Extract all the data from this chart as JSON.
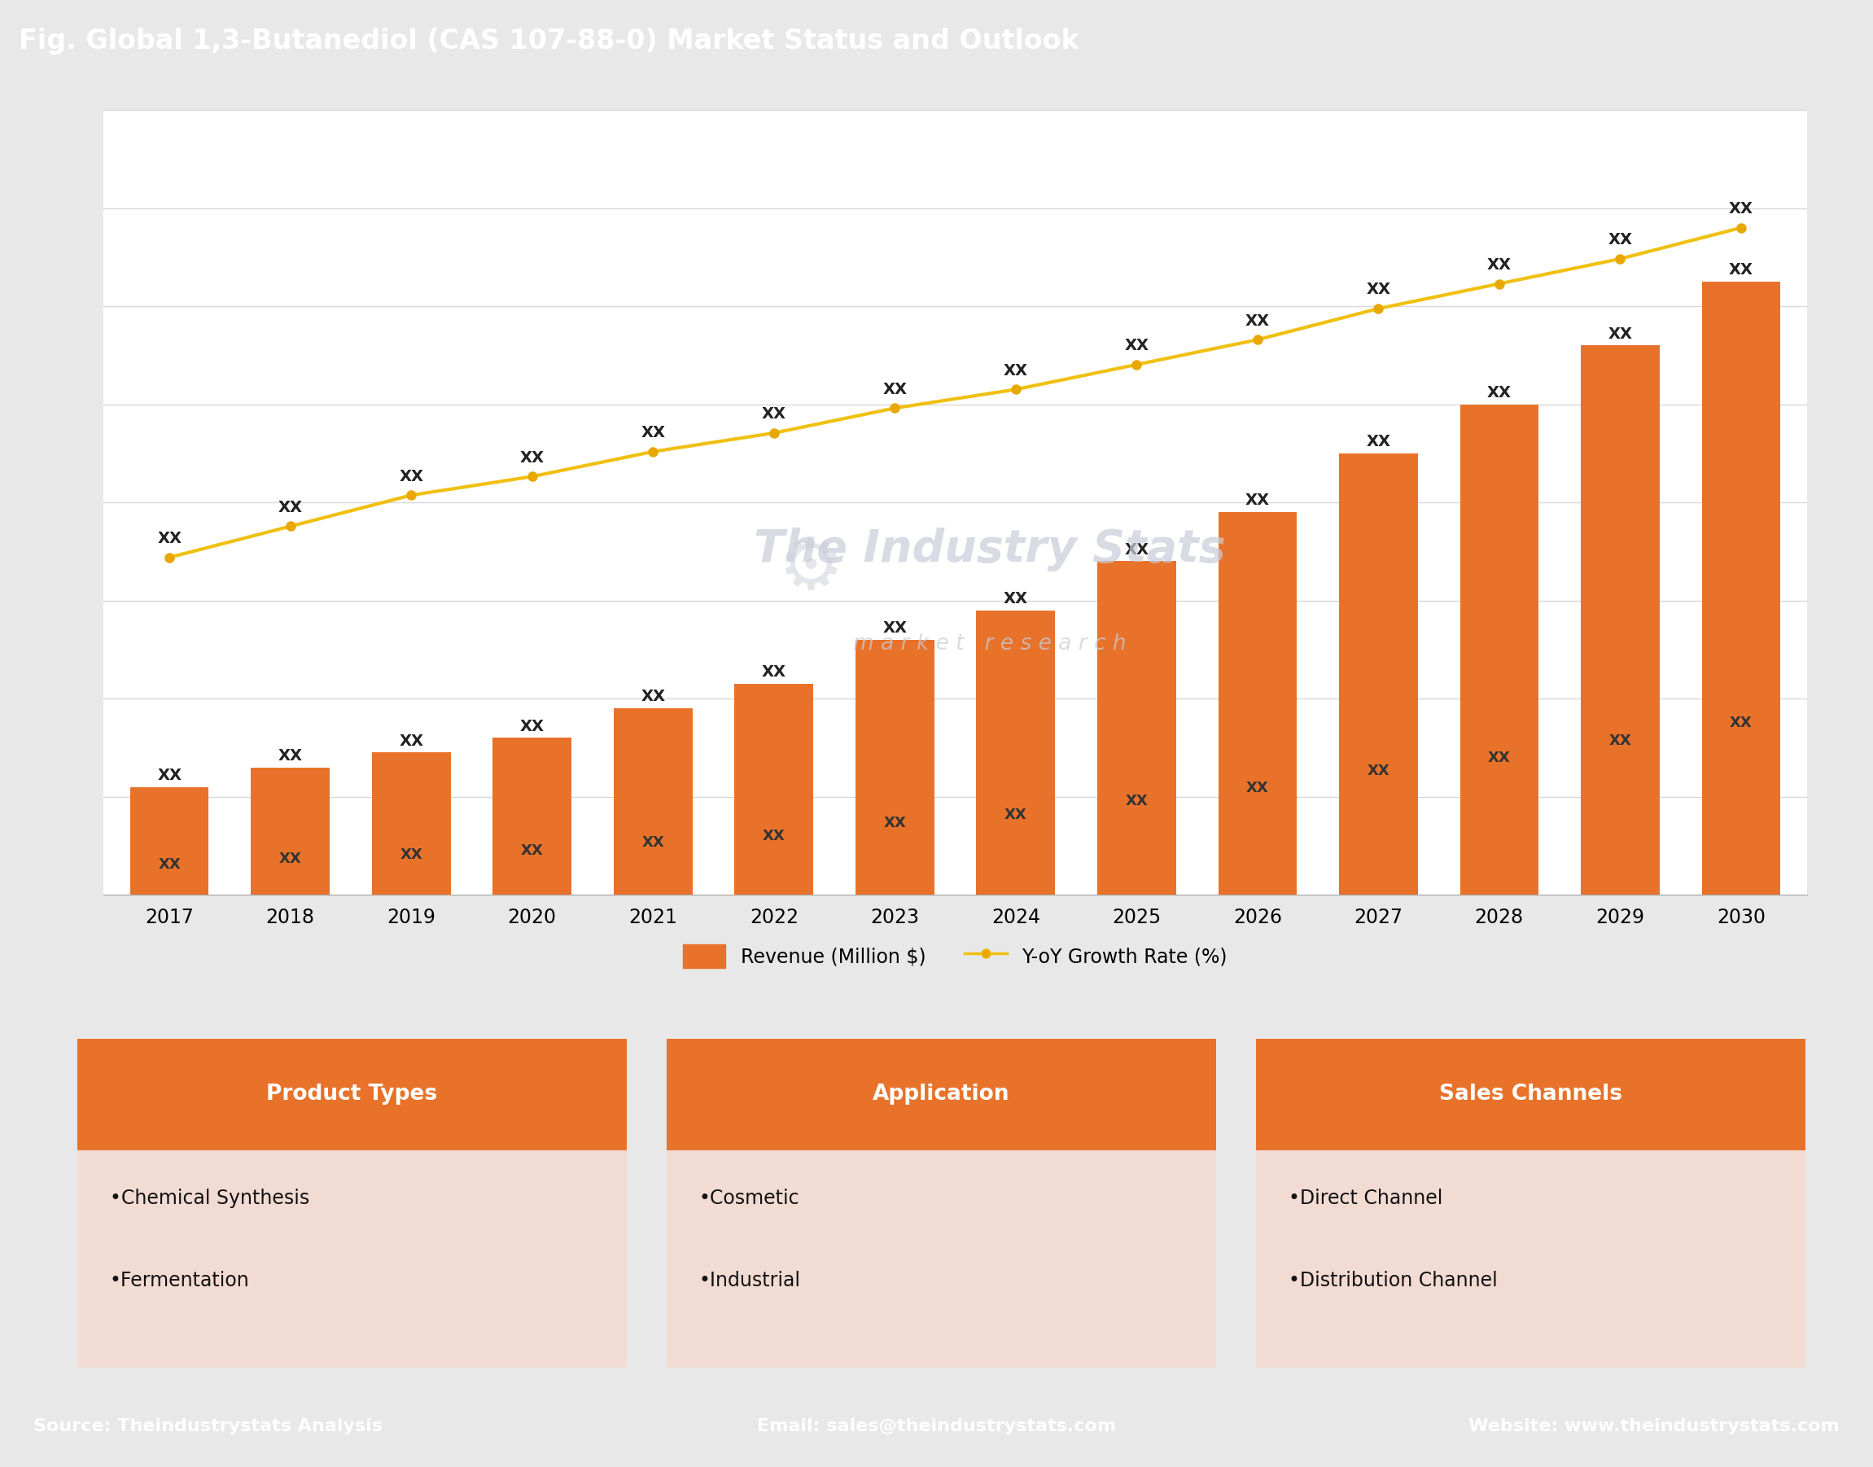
{
  "title": "Fig. Global 1,3-Butanediol (CAS 107-88-0) Market Status and Outlook",
  "title_bg_color": "#5578be",
  "title_text_color": "#ffffff",
  "chart_bg_color": "#ffffff",
  "outer_bg_color": "#e8e8e8",
  "years": [
    2017,
    2018,
    2019,
    2020,
    2021,
    2022,
    2023,
    2024,
    2025,
    2026,
    2027,
    2028,
    2029,
    2030
  ],
  "bar_values": [
    2.2,
    2.6,
    2.9,
    3.2,
    3.8,
    4.3,
    5.2,
    5.8,
    6.8,
    7.8,
    9.0,
    10.0,
    11.2,
    12.5
  ],
  "line_values": [
    5.5,
    6.0,
    6.5,
    6.8,
    7.2,
    7.5,
    7.9,
    8.2,
    8.6,
    9.0,
    9.5,
    9.9,
    10.3,
    10.8
  ],
  "bar_color": "#e8722a",
  "line_color": "#f0c010",
  "line_marker_color": "#e8a800",
  "bar_label": "Revenue (Million $)",
  "line_label": "Y-oY Growth Rate (%)",
  "bar_annotation": "XX",
  "line_annotation": "XX",
  "watermark_line1": "The Industry Stats",
  "watermark_line2": "m a r k e t   r e s e a r c h",
  "watermark_color": "#c8cdd8",
  "grid_color": "#d8d8d8",
  "footer_bg_color": "#5578be",
  "footer_text_color": "#ffffff",
  "footer_left": "Source: Theindustrystats Analysis",
  "footer_center": "Email: sales@theindustrystats.com",
  "footer_right": "Website: www.theindustrystats.com",
  "section_bg_color": "#4a7055",
  "box_bg_color": "#f2dbd3",
  "box_header_color": "#e8722a",
  "box_header_text_color": "#ffffff",
  "sections": [
    {
      "title": "Product Types",
      "items": [
        "Chemical Synthesis",
        "Fermentation"
      ]
    },
    {
      "title": "Application",
      "items": [
        "Cosmetic",
        "Industrial"
      ]
    },
    {
      "title": "Sales Channels",
      "items": [
        "Direct Channel",
        "Distribution Channel"
      ]
    }
  ]
}
